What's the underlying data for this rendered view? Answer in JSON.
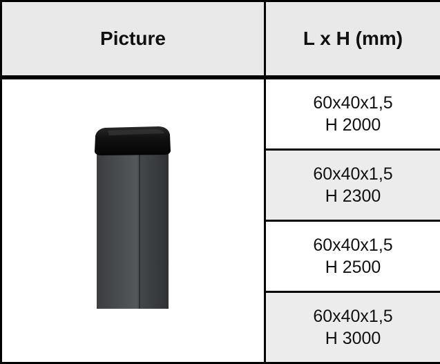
{
  "table": {
    "headers": {
      "picture": "Picture",
      "dimensions": "L x H (mm)"
    },
    "picture_icon": "square-fence-post-with-black-cap",
    "rows": [
      {
        "size": "60x40x1,5",
        "height": "H 2000"
      },
      {
        "size": "60x40x1,5",
        "height": "H 2300"
      },
      {
        "size": "60x40x1,5",
        "height": "H 2500"
      },
      {
        "size": "60x40x1,5",
        "height": "H 3000"
      }
    ],
    "colors": {
      "header_bg": "#e9e9e9",
      "alt_row_bg": "#ececec",
      "post": "#4a4c4e",
      "cap": "#1a1a1a"
    }
  }
}
